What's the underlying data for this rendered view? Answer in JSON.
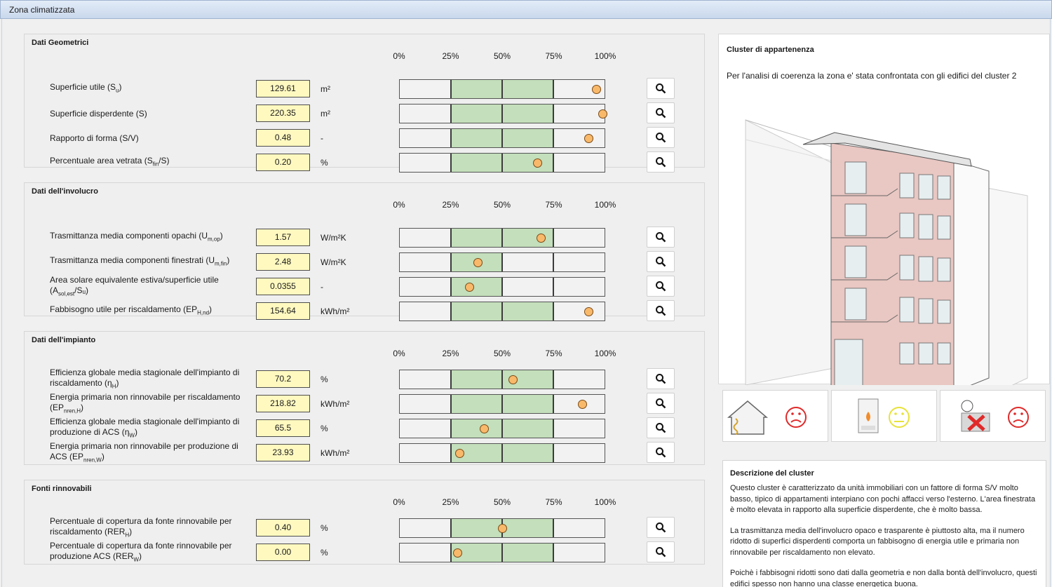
{
  "window": {
    "title": "Zona climatizzata"
  },
  "scale_labels": [
    "0%",
    "25%",
    "50%",
    "75%",
    "100%"
  ],
  "colors": {
    "good_band": "#c3dfbb",
    "value_bg": "#fff9c0",
    "marker": "#f9b96b",
    "sad": "#e02a2a",
    "neutral": "#e8e23a"
  },
  "sections": [
    {
      "title": "Dati Geometrici",
      "rows": [
        {
          "label": "Superficie utile (S",
          "sub": "u",
          "suffix": ")",
          "value": "129.61",
          "unit": "m²",
          "band": [
            25,
            75
          ],
          "marker_pct": 96
        },
        {
          "label": "Superficie disperdente (S)",
          "sub": "",
          "suffix": "",
          "value": "220.35",
          "unit": "m²",
          "band": [
            25,
            75
          ],
          "marker_pct": 99
        },
        {
          "label": "Rapporto di forma (S/V)",
          "sub": "",
          "suffix": "",
          "value": "0.48",
          "unit": "-",
          "band": [
            25,
            75
          ],
          "marker_pct": 92
        },
        {
          "label": "Percentuale area vetrata (S",
          "sub": "fin",
          "suffix": "/S)",
          "value": "0.20",
          "unit": "%",
          "band": [
            25,
            75
          ],
          "marker_pct": 67
        }
      ]
    },
    {
      "title": "Dati dell'involucro",
      "rows": [
        {
          "label": "Trasmittanza media componenti opachi (U",
          "sub": "m,op",
          "suffix": ")",
          "value": "1.57",
          "unit": "W/m²K",
          "band": [
            25,
            75
          ],
          "marker_pct": 69
        },
        {
          "label": "Trasmittanza media componenti finestrati (U",
          "sub": "m,fin",
          "suffix": ")",
          "value": "2.48",
          "unit": "W/m²K",
          "band": [
            25,
            50
          ],
          "marker_pct": 38
        },
        {
          "label": "Area solare equivalente estiva/superficie utile (A",
          "sub": "sol,est",
          "suffix": "/Sᵤ)",
          "value": "0.0355",
          "unit": "-",
          "band": [
            25,
            50
          ],
          "marker_pct": 34
        },
        {
          "label": "Fabbisogno utile per riscaldamento (EP",
          "sub": "H,nd",
          "suffix": ")",
          "value": "154.64",
          "unit": "kWh/m²",
          "band": [
            25,
            75
          ],
          "marker_pct": 92
        }
      ]
    },
    {
      "title": "Dati dell'impianto",
      "rows": [
        {
          "label": "Efficienza globale media stagionale dell'impianto di riscaldamento (η",
          "sub": "H",
          "suffix": ")",
          "value": "70.2",
          "unit": "%",
          "band": [
            25,
            75
          ],
          "marker_pct": 55
        },
        {
          "label": "Energia primaria non rinnovabile per riscaldamento (EP",
          "sub": "nren,H",
          "suffix": ")",
          "value": "218.82",
          "unit": "kWh/m²",
          "band": [
            25,
            75
          ],
          "marker_pct": 89
        },
        {
          "label": "Efficienza globale media stagionale dell'impianto di produzione di ACS (η",
          "sub": "W",
          "suffix": ")",
          "value": "65.5",
          "unit": "%",
          "band": [
            25,
            75
          ],
          "marker_pct": 41
        },
        {
          "label": "Energia primaria non rinnovabile per produzione di ACS (EP",
          "sub": "nren,W",
          "suffix": ")",
          "value": "23.93",
          "unit": "kWh/m²",
          "band": [
            25,
            75
          ],
          "marker_pct": 29
        }
      ]
    },
    {
      "title": "Fonti rinnovabili",
      "rows": [
        {
          "label": "Percentuale di copertura da fonte rinnovabile per riscaldamento (RER",
          "sub": "H",
          "suffix": ")",
          "value": "0.40",
          "unit": "%",
          "band": [
            25,
            75
          ],
          "marker_pct": 50
        },
        {
          "label": "Percentuale di copertura da fonte rinnovabile per produzione ACS (RER",
          "sub": "W",
          "suffix": ")",
          "value": "0.00",
          "unit": "%",
          "band": [
            25,
            75
          ],
          "marker_pct": 28
        }
      ]
    }
  ],
  "cluster": {
    "title": "Cluster di appartenenza",
    "intro": "Per l'analisi di coerenza la zona e' stata confrontata con gli edifici del cluster 2",
    "indicators": [
      {
        "name": "involucro",
        "mood": "sad"
      },
      {
        "name": "impianto",
        "mood": "neutral"
      },
      {
        "name": "rinnovabili",
        "mood": "sad"
      }
    ],
    "description_title": "Descrizione del cluster",
    "description": [
      "Questo cluster è caratterizzato da unità immobiliari con un fattore di forma S/V molto basso, tipico di appartamenti interpiano con pochi affacci verso l'esterno. L'area finestrata è molto elevata in rapporto alla superficie disperdente, che è molto bassa.",
      "La trasmittanza media dell'involucro opaco e trasparente è piuttosto alta, ma il numero ridotto di superfici disperdenti comporta un fabbisogno di energia utile e primaria non rinnovabile per riscaldamento non elevato.",
      "Poichè i fabbisogni ridotti sono dati dalla geometria e non dalla bontà dell'involucro, questi edifici spesso non hanno una classe energetica buona."
    ]
  }
}
